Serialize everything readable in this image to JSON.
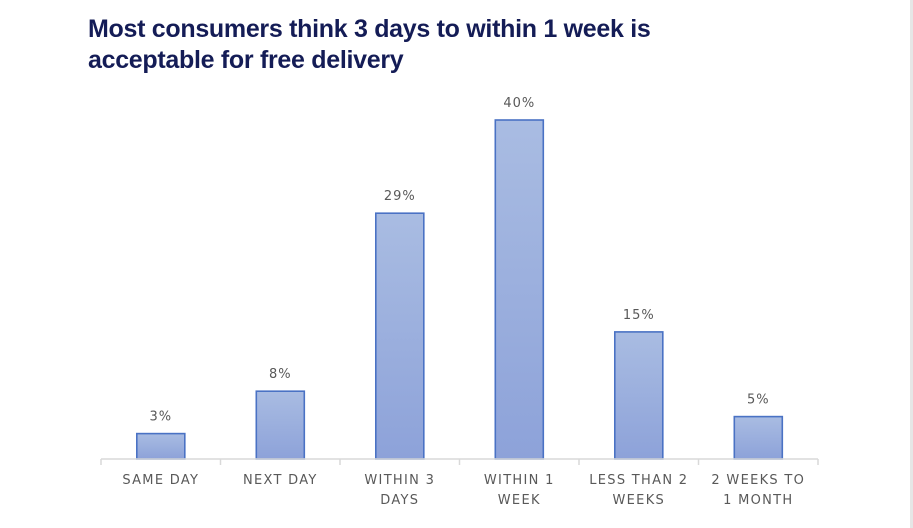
{
  "title": {
    "line1": "Most consumers think 3 days to within 1 week is",
    "line2": "acceptable for free delivery"
  },
  "colors": {
    "title": "#141c56",
    "bar_fill_top": "#a9bce2",
    "bar_fill_bottom": "#8da2d9",
    "bar_stroke": "#4a72c4",
    "axis": "#d9d9d9",
    "label": "#595959"
  },
  "chart_data": {
    "type": "bar",
    "title": "Most consumers think 3 days to within 1 week is acceptable for free delivery",
    "xlabel": "",
    "ylabel": "",
    "ylim": [
      0,
      40
    ],
    "grid": false,
    "legend": "none",
    "categories": [
      [
        "SAME DAY"
      ],
      [
        "NEXT DAY"
      ],
      [
        "WITHIN 3",
        "DAYS"
      ],
      [
        "WITHIN 1",
        "WEEK"
      ],
      [
        "LESS THAN 2",
        "WEEKS"
      ],
      [
        "2 WEEKS TO",
        "1 MONTH"
      ]
    ],
    "values": [
      3,
      8,
      29,
      40,
      15,
      5
    ],
    "value_labels": [
      "3%",
      "8%",
      "29%",
      "40%",
      "15%",
      "5%"
    ]
  }
}
